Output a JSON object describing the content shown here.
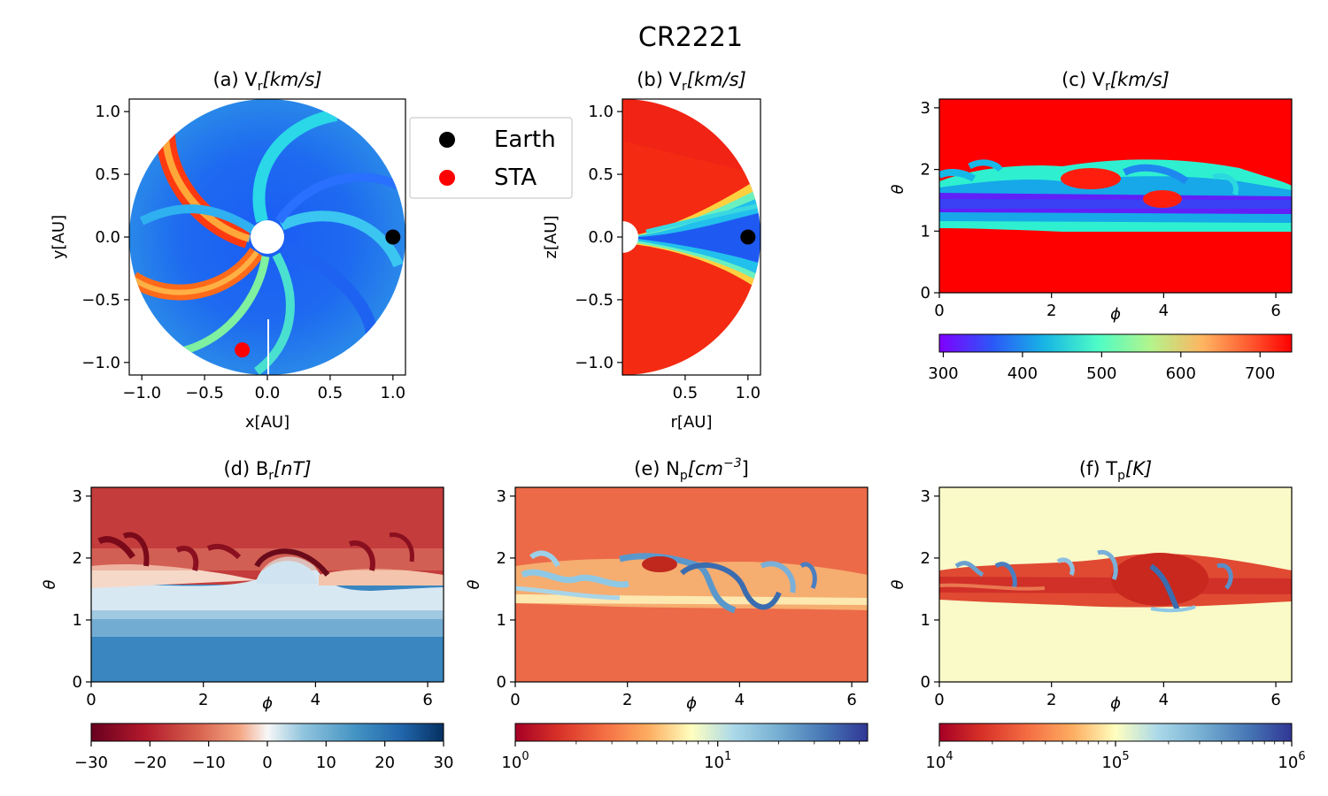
{
  "figure": {
    "suptitle": "CR2221"
  },
  "chart_data": [
    {
      "id": "a",
      "type": "heatmap",
      "projection": "polar-equatorial",
      "title": "(a) V",
      "title_sub": "r",
      "title_unit": "[km/s]",
      "xlabel": "x[AU]",
      "ylabel": "y[AU]",
      "xlim": [
        -1.1,
        1.1
      ],
      "ylim": [
        -1.1,
        1.1
      ],
      "xticks": [
        -1.0,
        -0.5,
        0.0,
        0.5,
        1.0
      ],
      "yticks": [
        -1.0,
        -0.5,
        0.0,
        0.5,
        1.0
      ],
      "xticklabels": [
        "−1.0",
        "−0.5",
        "0.0",
        "0.5",
        "1.0"
      ],
      "yticklabels": [
        "−1.0",
        "−0.5",
        "0.0",
        "0.5",
        "1.0"
      ],
      "points": [
        {
          "name": "Earth",
          "x": 1.0,
          "y": 0.0,
          "color": "#000000"
        },
        {
          "name": "STA",
          "x": -0.2,
          "y": -0.9,
          "color": "#ff0000"
        }
      ],
      "colorscale": "rainbow",
      "vrange": [
        295,
        740
      ]
    },
    {
      "id": "b",
      "type": "heatmap",
      "projection": "polar-meridional",
      "title": "(b) V",
      "title_sub": "r",
      "title_unit": "[km/s]",
      "xlabel": "r[AU]",
      "ylabel": "z[AU]",
      "xlim": [
        0.0,
        1.1
      ],
      "ylim": [
        -1.1,
        1.1
      ],
      "xticks": [
        0.5,
        1.0
      ],
      "yticks": [
        -1.0,
        -0.5,
        0.0,
        0.5,
        1.0
      ],
      "xticklabels": [
        "0.5",
        "1.0"
      ],
      "yticklabels": [
        "−1.0",
        "−0.5",
        "0.0",
        "0.5",
        "1.0"
      ],
      "points": [
        {
          "name": "Earth",
          "x": 1.0,
          "y": 0.0,
          "color": "#000000"
        }
      ],
      "colorscale": "rainbow",
      "vrange": [
        295,
        740
      ]
    },
    {
      "id": "c",
      "type": "heatmap",
      "title": "(c) V",
      "title_sub": "r",
      "title_unit": "[km/s]",
      "xlabel": "ϕ",
      "ylabel": "θ",
      "xlim": [
        0,
        6.283
      ],
      "ylim": [
        0,
        3.1416
      ],
      "xticks": [
        0,
        2,
        4,
        6
      ],
      "yticks": [
        0,
        1,
        2,
        3
      ],
      "xticklabels": [
        "0",
        "2",
        "4",
        "6"
      ],
      "yticklabels": [
        "0",
        "1",
        "2",
        "3"
      ],
      "colorbar": {
        "scale": "linear",
        "colormap": "rainbow",
        "vmin": 295,
        "vmax": 740,
        "ticks": [
          300,
          400,
          500,
          600,
          700
        ],
        "ticklabels": [
          "300",
          "400",
          "500",
          "600",
          "700"
        ]
      }
    },
    {
      "id": "d",
      "type": "heatmap",
      "title": "(d) B",
      "title_sub": "r",
      "title_unit": "[nT]",
      "xlabel": "ϕ",
      "ylabel": "θ",
      "xlim": [
        0,
        6.283
      ],
      "ylim": [
        0,
        3.1416
      ],
      "xticks": [
        0,
        2,
        4,
        6
      ],
      "yticks": [
        0,
        1,
        2,
        3
      ],
      "xticklabels": [
        "0",
        "2",
        "4",
        "6"
      ],
      "yticklabels": [
        "0",
        "1",
        "2",
        "3"
      ],
      "colorbar": {
        "scale": "linear",
        "colormap": "RdBu",
        "vmin": -30,
        "vmax": 30,
        "ticks": [
          -30,
          -20,
          -10,
          0,
          10,
          20,
          30
        ],
        "ticklabels": [
          "−30",
          "−20",
          "−10",
          "0",
          "10",
          "20",
          "30"
        ]
      }
    },
    {
      "id": "e",
      "type": "heatmap",
      "title": "(e) N",
      "title_sub": "p",
      "title_unit": "[cm",
      "title_sup": "−3",
      "title_close": "]",
      "xlabel": "ϕ",
      "ylabel": "θ",
      "xlim": [
        0,
        6.283
      ],
      "ylim": [
        0,
        3.1416
      ],
      "xticks": [
        0,
        2,
        4,
        6
      ],
      "yticks": [
        0,
        1,
        2,
        3
      ],
      "xticklabels": [
        "0",
        "2",
        "4",
        "6"
      ],
      "yticklabels": [
        "0",
        "1",
        "2",
        "3"
      ],
      "colorbar": {
        "scale": "log",
        "colormap": "RdYlBu",
        "vmin": 1,
        "vmax": 55,
        "ticks": [
          1,
          10
        ],
        "ticklabels": [
          {
            "base": "10",
            "exp": "0"
          },
          {
            "base": "10",
            "exp": "1"
          }
        ]
      }
    },
    {
      "id": "f",
      "type": "heatmap",
      "title": "(f) T",
      "title_sub": "p",
      "title_unit": "[K]",
      "xlabel": "ϕ",
      "ylabel": "θ",
      "xlim": [
        0,
        6.283
      ],
      "ylim": [
        0,
        3.1416
      ],
      "xticks": [
        0,
        2,
        4,
        6
      ],
      "yticks": [
        0,
        1,
        2,
        3
      ],
      "xticklabels": [
        "0",
        "2",
        "4",
        "6"
      ],
      "yticklabels": [
        "0",
        "1",
        "2",
        "3"
      ],
      "colorbar": {
        "scale": "log",
        "colormap": "RdYlBu",
        "vmin": 10000,
        "vmax": 1000000,
        "ticks": [
          10000,
          100000,
          1000000
        ],
        "ticklabels": [
          {
            "base": "10",
            "exp": "4"
          },
          {
            "base": "10",
            "exp": "5"
          },
          {
            "base": "10",
            "exp": "6"
          }
        ]
      }
    }
  ],
  "legend": {
    "entries": [
      {
        "label": "Earth",
        "color": "#000000"
      },
      {
        "label": "STA",
        "color": "#ff0000"
      }
    ]
  }
}
